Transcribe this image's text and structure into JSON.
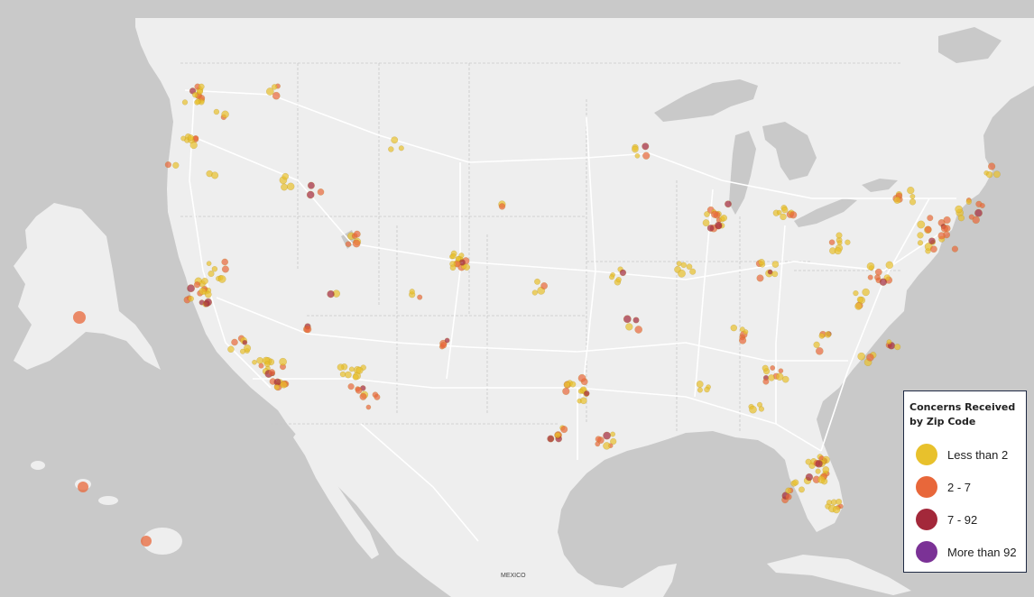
{
  "legend": {
    "title": "Concerns Received by Zip Code",
    "items": [
      {
        "label": "Less than 2",
        "color": "#e8c12c"
      },
      {
        "label": "2 - 7",
        "color": "#e8673a"
      },
      {
        "label": "7 - 92",
        "color": "#a3283a"
      },
      {
        "label": "More than 92",
        "color": "#7b3296"
      }
    ]
  },
  "map": {
    "land_color": "#eeeeee",
    "water_color": "#c9c9c9",
    "road_color": "#ffffff",
    "label": "MEXICO"
  }
}
